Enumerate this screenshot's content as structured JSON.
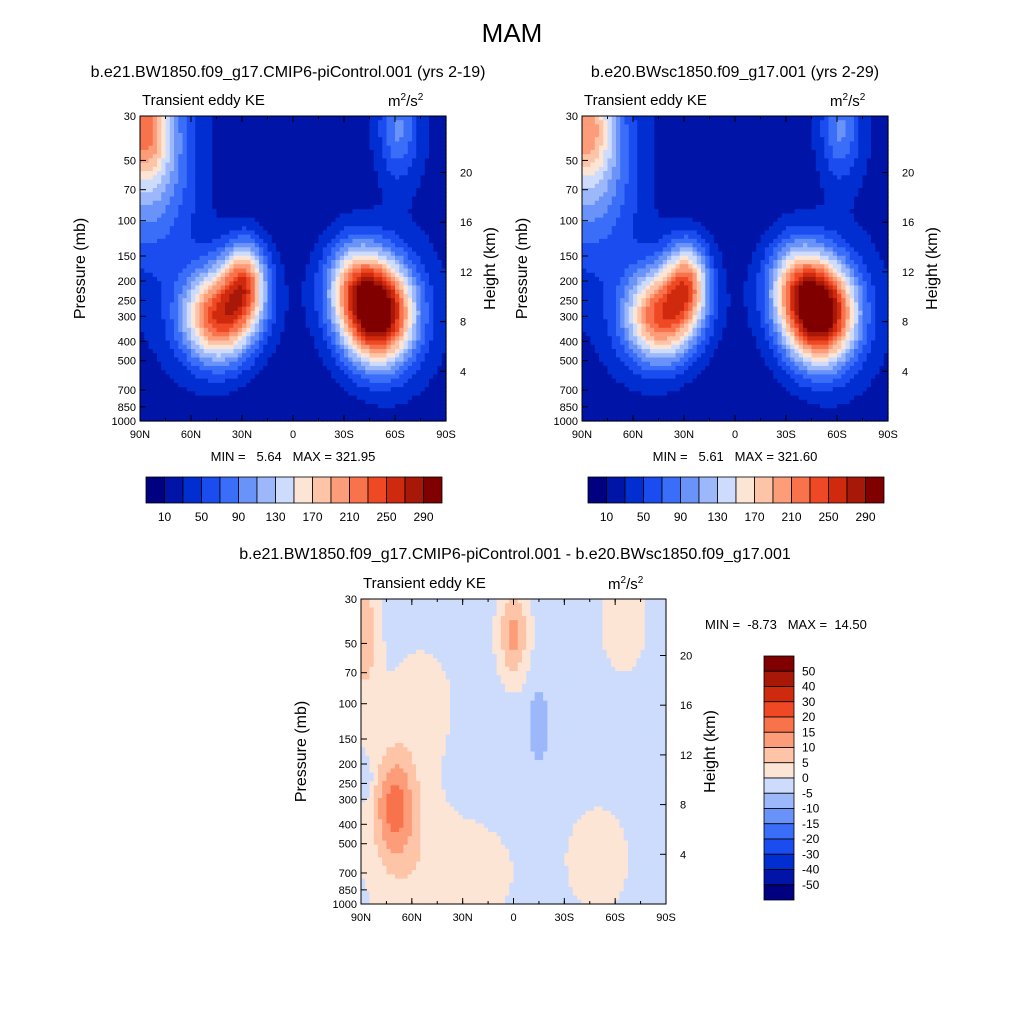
{
  "figure_title": "MAM",
  "chart_data": [
    {
      "type": "heatmap",
      "id": "p1",
      "title": "b.e21.BW1850.f09_g17.CMIP6-piControl.001 (yrs 2-19)",
      "subtitle_left": "Transient eddy KE",
      "units": {
        "base": "m",
        "exp": "2",
        "slash": "/s",
        "exp2": "2"
      },
      "xlabel": "",
      "ylabel": "Pressure (mb)",
      "ylabel_right": "Height (km)",
      "x_ticks": [
        "90N",
        "60N",
        "30N",
        "0",
        "30S",
        "60S",
        "90S"
      ],
      "x_range": [
        90,
        -90
      ],
      "y_ticks": [
        30,
        50,
        70,
        100,
        150,
        200,
        250,
        300,
        400,
        500,
        700,
        850,
        1000
      ],
      "y_range": [
        30,
        1000
      ],
      "height_ticks": [
        20,
        16,
        12,
        8,
        4
      ],
      "stats": "MIN =   5.64   MAX = 321.95",
      "levels": [
        10,
        30,
        50,
        70,
        90,
        110,
        130,
        150,
        170,
        190,
        210,
        230,
        250,
        270,
        290
      ],
      "colorbar_labels": [
        "10",
        "50",
        "90",
        "130",
        "170",
        "210",
        "250",
        "290"
      ],
      "colors": [
        "#000080",
        "#0014a8",
        "#002ed0",
        "#1a4cf0",
        "#3a6ef8",
        "#6a93fa",
        "#9cb8fb",
        "#cddcfd",
        "#fde5d6",
        "#fdc4a8",
        "#fc9c78",
        "#f8724c",
        "#ee4924",
        "#cf2a0e",
        "#a81808",
        "#800000"
      ],
      "base": 25,
      "blobs": [
        {
          "lat": 44,
          "p": 300,
          "amp": 220,
          "wx": 15,
          "wy": 0.38
        },
        {
          "lat": 28,
          "p": 200,
          "amp": 160,
          "wx": 9,
          "wy": 0.33
        },
        {
          "lat": -50,
          "p": 290,
          "amp": 300,
          "wx": 15,
          "wy": 0.42
        },
        {
          "lat": -35,
          "p": 200,
          "amp": 100,
          "wx": 12,
          "wy": 0.35
        },
        {
          "lat": 88,
          "p": 32,
          "amp": 150,
          "wx": 12,
          "wy": 0.45
        },
        {
          "lat": 85,
          "p": 60,
          "amp": 80,
          "wx": 20,
          "wy": 0.7
        },
        {
          "lat": -62,
          "p": 35,
          "amp": 70,
          "wx": 8,
          "wy": 0.4
        },
        {
          "lat": 0,
          "p": 1000,
          "amp": -15,
          "wx": 40,
          "wy": 0.7
        },
        {
          "lat": 10,
          "p": 60,
          "amp": -15,
          "wx": 35,
          "wy": 0.7
        }
      ]
    },
    {
      "type": "heatmap",
      "id": "p2",
      "title": "b.e20.BWsc1850.f09_g17.001 (yrs 2-29)",
      "subtitle_left": "Transient eddy KE",
      "units": {
        "base": "m",
        "exp": "2",
        "slash": "/s",
        "exp2": "2"
      },
      "xlabel": "",
      "ylabel": "Pressure (mb)",
      "ylabel_right": "Height (km)",
      "x_ticks": [
        "90N",
        "60N",
        "30N",
        "0",
        "30S",
        "60S",
        "90S"
      ],
      "x_range": [
        90,
        -90
      ],
      "y_ticks": [
        30,
        50,
        70,
        100,
        150,
        200,
        250,
        300,
        400,
        500,
        700,
        850,
        1000
      ],
      "y_range": [
        30,
        1000
      ],
      "height_ticks": [
        20,
        16,
        12,
        8,
        4
      ],
      "stats": "MIN =   5.61   MAX = 321.60",
      "levels": [
        10,
        30,
        50,
        70,
        90,
        110,
        130,
        150,
        170,
        190,
        210,
        230,
        250,
        270,
        290
      ],
      "colorbar_labels": [
        "10",
        "50",
        "90",
        "130",
        "170",
        "210",
        "250",
        "290"
      ],
      "colors": [
        "#000080",
        "#0014a8",
        "#002ed0",
        "#1a4cf0",
        "#3a6ef8",
        "#6a93fa",
        "#9cb8fb",
        "#cddcfd",
        "#fde5d6",
        "#fdc4a8",
        "#fc9c78",
        "#f8724c",
        "#ee4924",
        "#cf2a0e",
        "#a81808",
        "#800000"
      ],
      "base": 25,
      "blobs": [
        {
          "lat": 44,
          "p": 300,
          "amp": 210,
          "wx": 15,
          "wy": 0.38
        },
        {
          "lat": 28,
          "p": 200,
          "amp": 150,
          "wx": 9,
          "wy": 0.33
        },
        {
          "lat": -50,
          "p": 290,
          "amp": 300,
          "wx": 15,
          "wy": 0.42
        },
        {
          "lat": -35,
          "p": 200,
          "amp": 100,
          "wx": 12,
          "wy": 0.35
        },
        {
          "lat": 88,
          "p": 32,
          "amp": 130,
          "wx": 12,
          "wy": 0.45
        },
        {
          "lat": 85,
          "p": 60,
          "amp": 80,
          "wx": 20,
          "wy": 0.7
        },
        {
          "lat": -62,
          "p": 35,
          "amp": 70,
          "wx": 8,
          "wy": 0.4
        },
        {
          "lat": 0,
          "p": 1000,
          "amp": -15,
          "wx": 40,
          "wy": 0.7
        },
        {
          "lat": 10,
          "p": 60,
          "amp": -15,
          "wx": 35,
          "wy": 0.7
        }
      ]
    },
    {
      "type": "heatmap",
      "id": "p3",
      "title": "b.e21.BW1850.f09_g17.CMIP6-piControl.001 - b.e20.BWsc1850.f09_g17.001",
      "subtitle_left": "Transient eddy KE",
      "units": {
        "base": "m",
        "exp": "2",
        "slash": "/s",
        "exp2": "2"
      },
      "xlabel": "",
      "ylabel": "Pressure (mb)",
      "ylabel_right": "Height (km)",
      "x_ticks": [
        "90N",
        "60N",
        "30N",
        "0",
        "30S",
        "60S",
        "90S"
      ],
      "x_range": [
        90,
        -90
      ],
      "y_ticks": [
        30,
        50,
        70,
        100,
        150,
        200,
        250,
        300,
        400,
        500,
        700,
        850,
        1000
      ],
      "y_range": [
        30,
        1000
      ],
      "height_ticks": [
        20,
        16,
        12,
        8,
        4
      ],
      "stats": "MIN =  -8.73   MAX =  14.50",
      "levels": [
        -50,
        -40,
        -30,
        -20,
        -15,
        -10,
        -5,
        0,
        5,
        10,
        15,
        20,
        30,
        40,
        50
      ],
      "colorbar_labels": [
        "50",
        "40",
        "30",
        "20",
        "15",
        "10",
        "5",
        "0",
        "-5",
        "-10",
        "-15",
        "-20",
        "-30",
        "-40",
        "-50"
      ],
      "colors": [
        "#000080",
        "#0014a8",
        "#002ed0",
        "#1a4cf0",
        "#3a6ef8",
        "#6a93fa",
        "#9cb8fb",
        "#cddcfd",
        "#fde5d6",
        "#fdc4a8",
        "#fc9c78",
        "#f8724c",
        "#ee4924",
        "#cf2a0e",
        "#a81808",
        "#800000"
      ],
      "base": -2,
      "blobs": [
        {
          "lat": 70,
          "p": 320,
          "amp": 14,
          "wx": 8,
          "wy": 0.4
        },
        {
          "lat": 68,
          "p": 420,
          "amp": 6,
          "wx": 15,
          "wy": 0.7
        },
        {
          "lat": 0,
          "p": 45,
          "amp": 14,
          "wx": 6,
          "wy": 0.35
        },
        {
          "lat": 88,
          "p": 45,
          "amp": 10,
          "wx": 6,
          "wy": 0.6
        },
        {
          "lat": -65,
          "p": 40,
          "amp": 5,
          "wx": 10,
          "wy": 0.4
        },
        {
          "lat": 30,
          "p": 700,
          "amp": 4,
          "wx": 25,
          "wy": 0.5
        },
        {
          "lat": 55,
          "p": 100,
          "amp": 4,
          "wx": 15,
          "wy": 0.5
        },
        {
          "lat": -50,
          "p": 600,
          "amp": 4,
          "wx": 15,
          "wy": 0.5
        },
        {
          "lat": -15,
          "p": 130,
          "amp": -8,
          "wx": 4,
          "wy": 0.3
        },
        {
          "lat": 87,
          "p": 240,
          "amp": -6,
          "wx": 3,
          "wy": 0.15
        }
      ]
    }
  ]
}
